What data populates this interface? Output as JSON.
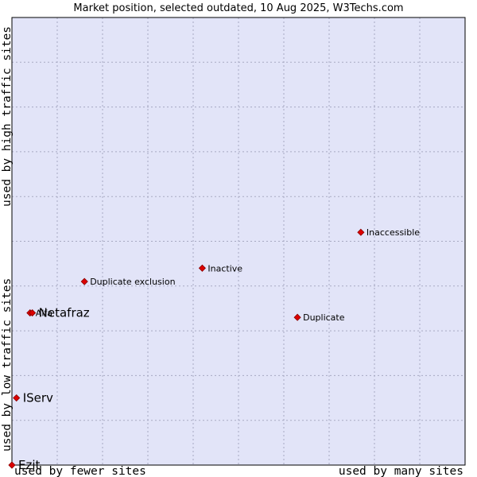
{
  "chart_data": {
    "type": "scatter",
    "title": "Market position, selected outdated, 10 Aug 2025, W3Techs.com",
    "xlabel_left": "used by fewer sites",
    "xlabel_right": "used by many sites",
    "ylabel_bottom": "used by low traffic sites",
    "ylabel_top": "used by high traffic sites",
    "grid": true,
    "colors": {
      "plot_bg": "#e2e4f8",
      "grid": "#a7a9c2",
      "point": "#dd0000",
      "point_stroke": "#8a0000"
    },
    "points": [
      {
        "name": "Inaccessible",
        "x": 0.77,
        "y": 0.52,
        "size": "small"
      },
      {
        "name": "Inactive",
        "x": 0.42,
        "y": 0.44,
        "size": "small"
      },
      {
        "name": "Duplicate exclusion",
        "x": 0.16,
        "y": 0.41,
        "size": "small"
      },
      {
        "name": "Duplicate",
        "x": 0.63,
        "y": 0.33,
        "size": "small"
      },
      {
        "name": "Alfa",
        "x": 0.04,
        "y": 0.34,
        "size": "small"
      },
      {
        "name": "Netafraz",
        "x": 0.045,
        "y": 0.34,
        "size": "big"
      },
      {
        "name": "IServ",
        "x": 0.01,
        "y": 0.15,
        "size": "big"
      },
      {
        "name": "Ezit",
        "x": 0.0,
        "y": 0.0,
        "size": "big"
      }
    ]
  }
}
